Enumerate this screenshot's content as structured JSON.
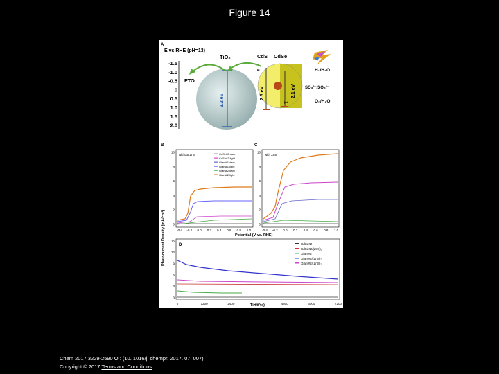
{
  "page": {
    "title": "Figure 14"
  },
  "panel_a": {
    "letter": "A",
    "axis_title": "E vs RHE (pH=13)",
    "ticks": [
      "-1.5",
      "-1.0",
      "-0.5",
      "0",
      "0.5",
      "1.0",
      "1.5",
      "2.0"
    ],
    "fto": "FTO",
    "tio2": "TiO₂",
    "cds": "CdS",
    "cdse": "CdSe",
    "gap_tio2": "3.2 eV",
    "gap_cds": "2.5 eV",
    "gap_cdse": "2.1 eV",
    "electron": "e⁻",
    "hole": "h⁺",
    "h2": "H₂/H₂O",
    "so3": "SO₃²⁻/SO₄²⁻",
    "o2": "O₂/H₂O",
    "colors": {
      "sphere": "#bcd2d2",
      "cds": "#f2ee6c",
      "cdse": "#c8c21f",
      "core": "#b84a1a",
      "arrow": "#5aaa3a",
      "bar": "#2255aa"
    }
  },
  "panel_b": {
    "letter": "B",
    "header": "without ZnS",
    "legend": [
      "CdSe#2 dark",
      "CdSe#2 light",
      "Giant#1 dark",
      "Giant#1 light",
      "Giant#2 dark",
      "Giant#2 light"
    ],
    "colors": [
      "#9a9a9a",
      "#cc44cc",
      "#6666cc",
      "#6666ff",
      "#44aa44",
      "#e07a1a"
    ],
    "yticks": [
      "0",
      "2",
      "4",
      "6",
      "8",
      "10"
    ],
    "xticks": [
      "-0.4",
      "-0.2",
      "0.0",
      "0.2",
      "0.4",
      "0.6",
      "0.8",
      "1.0"
    ]
  },
  "panel_c": {
    "letter": "C",
    "header": "with ZnS",
    "yticks": [
      "0",
      "2",
      "4",
      "6",
      "8",
      "10"
    ],
    "xticks": [
      "-0.4",
      "-0.2",
      "0.0",
      "0.2",
      "0.4",
      "0.6",
      "0.8",
      "1.0"
    ]
  },
  "bc_axes": {
    "ylabel": "Photocurrent Density (mA/cm²)",
    "xlabel": "Potential (V vs. RHE)"
  },
  "panel_d": {
    "letter": "D",
    "legend": [
      "CdSe#2",
      "CdSe#2/(ZnS)₂",
      "Giant#2",
      "Giant#2/(ZnS)₂",
      "Giant#2/(ZnS)₂"
    ],
    "colors": [
      "#333333",
      "#cc3333",
      "#44aa44",
      "#3333cc",
      "#cc44cc"
    ],
    "yticks": [
      "0",
      "3",
      "6",
      "9",
      "12",
      "15"
    ],
    "xticks": [
      "0",
      "1200",
      "2400",
      "3600",
      "4800",
      "6000",
      "7200"
    ],
    "xlabel": "Time (s)"
  },
  "footer": {
    "citation": "Chem 2017 3229-2590 OI: (10. 1016/j. chempr. 2017. 07. 007)",
    "copyright": "Copyright © 2017",
    "link": "Terms and Conditions"
  }
}
